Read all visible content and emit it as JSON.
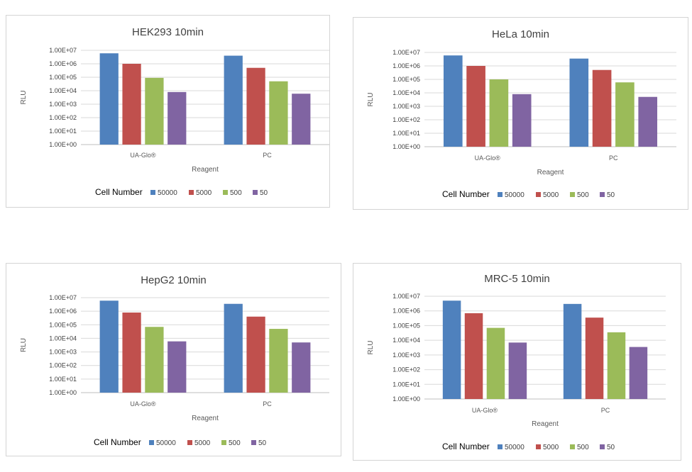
{
  "colors": {
    "50000": "#4f81bd",
    "5000": "#c0504d",
    "500": "#9bbb59",
    "50": "#8064a2"
  },
  "chart_data": [
    {
      "type": "bar",
      "title": "HEK293 10min",
      "xlabel": "Reagent",
      "ylabel": "RLU",
      "yscale": "log",
      "ylim": [
        1,
        10000000
      ],
      "yticks": [
        "1.00E+00",
        "1.00E+01",
        "1.00E+02",
        "1.00E+03",
        "1.00E+04",
        "1.00E+05",
        "1.00E+06",
        "1.00E+07"
      ],
      "categories": [
        "UA-Glo®",
        "PC"
      ],
      "legend_title": "Cell Number",
      "legend_position": "bottom",
      "series": [
        {
          "name": "50000",
          "values": [
            6000000,
            4000000
          ]
        },
        {
          "name": "5000",
          "values": [
            1000000,
            500000
          ]
        },
        {
          "name": "500",
          "values": [
            90000,
            50000
          ]
        },
        {
          "name": "50",
          "values": [
            8000,
            6000
          ]
        }
      ]
    },
    {
      "type": "bar",
      "title": "HeLa 10min",
      "xlabel": "Reagent",
      "ylabel": "RLU",
      "yscale": "log",
      "ylim": [
        1,
        10000000
      ],
      "yticks": [
        "1.00E+00",
        "1.00E+01",
        "1.00E+02",
        "1.00E+03",
        "1.00E+04",
        "1.00E+05",
        "1.00E+06",
        "1.00E+07"
      ],
      "categories": [
        "UA-Glo®",
        "PC"
      ],
      "legend_title": "Cell Number",
      "legend_position": "bottom",
      "series": [
        {
          "name": "50000",
          "values": [
            6000000,
            3500000
          ]
        },
        {
          "name": "5000",
          "values": [
            1000000,
            500000
          ]
        },
        {
          "name": "500",
          "values": [
            100000,
            60000
          ]
        },
        {
          "name": "50",
          "values": [
            8000,
            5000
          ]
        }
      ]
    },
    {
      "type": "bar",
      "title": "HepG2 10min",
      "xlabel": "Reagent",
      "ylabel": "RLU",
      "yscale": "log",
      "ylim": [
        1,
        10000000
      ],
      "yticks": [
        "1.00E+00",
        "1.00E+01",
        "1.00E+02",
        "1.00E+03",
        "1.00E+04",
        "1.00E+05",
        "1.00E+06",
        "1.00E+07"
      ],
      "categories": [
        "UA-Glo®",
        "PC"
      ],
      "legend_title": "Cell Number",
      "legend_position": "bottom",
      "series": [
        {
          "name": "50000",
          "values": [
            6000000,
            3500000
          ]
        },
        {
          "name": "5000",
          "values": [
            800000,
            400000
          ]
        },
        {
          "name": "500",
          "values": [
            70000,
            50000
          ]
        },
        {
          "name": "50",
          "values": [
            6000,
            5000
          ]
        }
      ]
    },
    {
      "type": "bar",
      "title": "MRC-5 10min",
      "xlabel": "Reagent",
      "ylabel": "RLU",
      "yscale": "log",
      "ylim": [
        1,
        10000000
      ],
      "yticks": [
        "1.00E+00",
        "1.00E+01",
        "1.00E+02",
        "1.00E+03",
        "1.00E+04",
        "1.00E+05",
        "1.00E+06",
        "1.00E+07"
      ],
      "categories": [
        "UA-Glo®",
        "PC"
      ],
      "legend_title": "Cell Number",
      "legend_position": "bottom",
      "series": [
        {
          "name": "50000",
          "values": [
            5000000,
            3000000
          ]
        },
        {
          "name": "5000",
          "values": [
            700000,
            350000
          ]
        },
        {
          "name": "500",
          "values": [
            70000,
            35000
          ]
        },
        {
          "name": "50",
          "values": [
            7000,
            3500
          ]
        }
      ]
    }
  ]
}
